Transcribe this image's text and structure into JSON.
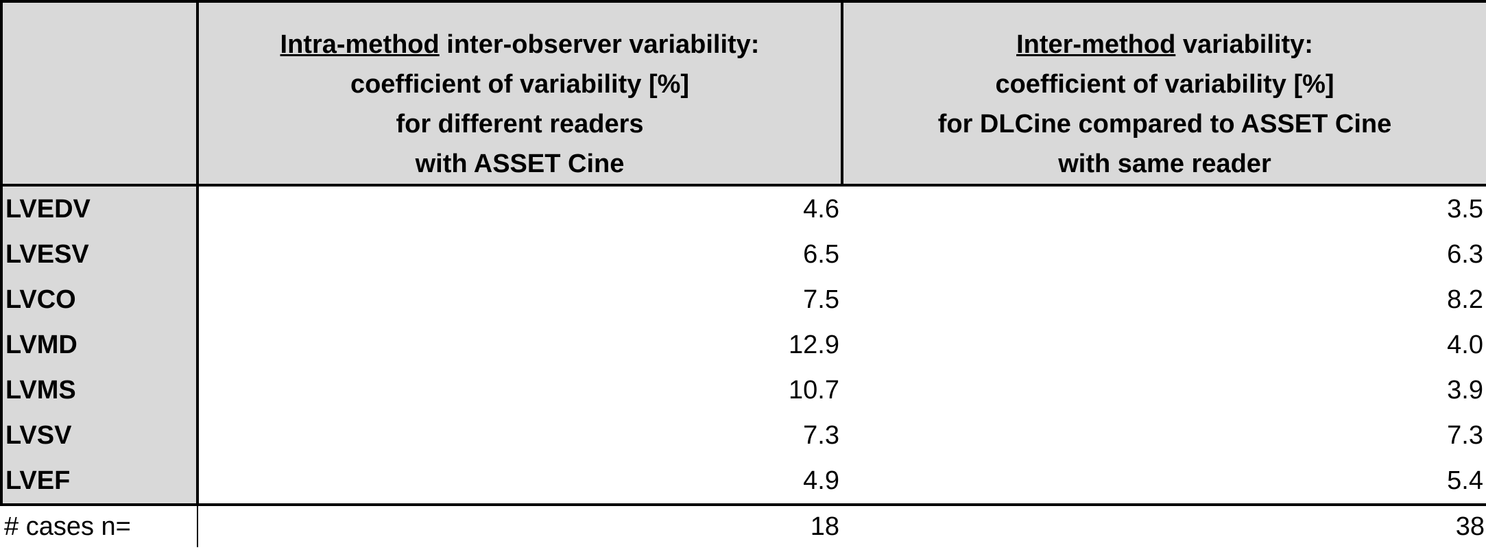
{
  "table": {
    "header": [
      {
        "underlined": "Intra-method",
        "rest": " inter-observer variability:",
        "lines": [
          "coefficient of variability [%]",
          "for different readers",
          "with ASSET Cine"
        ]
      },
      {
        "underlined": "Inter-method",
        "rest": " variability:",
        "lines": [
          "coefficient of variability [%]",
          "for DLCine compared to ASSET Cine",
          "with same reader"
        ]
      }
    ],
    "rows": [
      [
        "LVEDV",
        "4.6",
        "3.5"
      ],
      [
        "LVESV",
        "6.5",
        "6.3"
      ],
      [
        "LVCO",
        "7.5",
        "8.2"
      ],
      [
        "LVMD",
        "12.9",
        "4.0"
      ],
      [
        "LVMS",
        "10.7",
        "3.9"
      ],
      [
        "LVSV",
        "7.3",
        "7.3"
      ],
      [
        "LVEF",
        "4.9",
        "5.4"
      ]
    ],
    "footer": [
      "# cases n=",
      "18",
      "38"
    ]
  }
}
